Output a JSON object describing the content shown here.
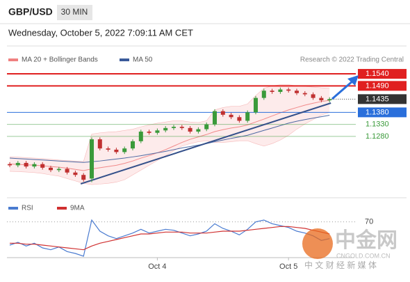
{
  "header": {
    "symbol": "GBP/USD",
    "interval": "30 MIN",
    "timestamp": "Wednesday, October 5, 2022 7:09:11 AM CET"
  },
  "watermark": {
    "brand": "中金网",
    "domain": "CNGOLD.COM.CN",
    "slogan": "中 文 财 经 新 媒 体"
  },
  "chart_data": [
    {
      "type": "candlestick",
      "credit": "Research © 2022 Trading Central",
      "legend": [
        {
          "name": "MA 20 + Bollinger Bands",
          "color": "#f08080"
        },
        {
          "name": "MA 50",
          "color": "#3a5a9a"
        }
      ],
      "categories": [
        null,
        null,
        null,
        null,
        null,
        null,
        null,
        null,
        null,
        null,
        null,
        null,
        null,
        null,
        null,
        null,
        null,
        null,
        "Oct 4",
        null,
        null,
        null,
        null,
        null,
        null,
        null,
        null,
        null,
        null,
        null,
        null,
        null,
        null,
        null,
        "Oct 5",
        null,
        null,
        null,
        null,
        null
      ],
      "open": [
        1.1165,
        1.116,
        1.117,
        1.1155,
        1.1165,
        1.115,
        1.114,
        1.1145,
        1.113,
        1.112,
        1.1105,
        1.1268,
        1.123,
        1.1225,
        1.1215,
        1.123,
        1.126,
        1.13,
        1.1295,
        1.1305,
        1.1315,
        1.132,
        1.1315,
        1.13,
        1.131,
        1.133,
        1.1385,
        1.137,
        1.136,
        1.1345,
        1.138,
        1.144,
        1.147,
        1.1465,
        1.1475,
        1.147,
        1.146,
        1.1455,
        1.144,
        1.143
      ],
      "high": [
        1.1173,
        1.1178,
        1.1178,
        1.1173,
        1.1173,
        1.1158,
        1.1153,
        1.1153,
        1.1138,
        1.1128,
        1.1276,
        1.1276,
        1.1238,
        1.1233,
        1.1238,
        1.1268,
        1.1308,
        1.1308,
        1.1313,
        1.1323,
        1.1328,
        1.1328,
        1.1323,
        1.1318,
        1.1338,
        1.1393,
        1.1393,
        1.1378,
        1.1368,
        1.1388,
        1.1448,
        1.1478,
        1.1478,
        1.1483,
        1.1483,
        1.1478,
        1.1468,
        1.1463,
        1.1448,
        1.1443
      ],
      "low": [
        1.1152,
        1.1152,
        1.1147,
        1.1147,
        1.1142,
        1.1132,
        1.1132,
        1.1122,
        1.1112,
        1.1092,
        1.109,
        1.1222,
        1.1217,
        1.1207,
        1.1207,
        1.1222,
        1.1252,
        1.1287,
        1.1287,
        1.1297,
        1.1307,
        1.1307,
        1.1292,
        1.1292,
        1.1302,
        1.1322,
        1.1362,
        1.1352,
        1.1337,
        1.1337,
        1.1372,
        1.1432,
        1.1457,
        1.1457,
        1.1462,
        1.1452,
        1.1447,
        1.1432,
        1.1422,
        1.1422
      ],
      "close": [
        1.116,
        1.117,
        1.1155,
        1.1165,
        1.115,
        1.114,
        1.1145,
        1.113,
        1.112,
        1.11,
        1.1268,
        1.123,
        1.1225,
        1.1215,
        1.123,
        1.126,
        1.13,
        1.1295,
        1.1305,
        1.1315,
        1.132,
        1.1315,
        1.13,
        1.131,
        1.133,
        1.1385,
        1.137,
        1.136,
        1.1345,
        1.138,
        1.144,
        1.147,
        1.1465,
        1.1475,
        1.147,
        1.146,
        1.1455,
        1.144,
        1.143,
        1.1435
      ],
      "ma20": [
        1.1165,
        1.1164,
        1.1162,
        1.1161,
        1.1158,
        1.1155,
        1.1152,
        1.1148,
        1.1143,
        1.1138,
        1.1145,
        1.115,
        1.1155,
        1.116,
        1.1168,
        1.1178,
        1.119,
        1.12,
        1.1212,
        1.1225,
        1.124,
        1.1255,
        1.1268,
        1.1278,
        1.1288,
        1.13,
        1.1308,
        1.1315,
        1.132,
        1.1328,
        1.134,
        1.1352,
        1.1365,
        1.1378,
        1.139,
        1.14,
        1.141,
        1.1418,
        1.1425,
        1.143
      ],
      "bb_upper": [
        1.1195,
        1.1194,
        1.1192,
        1.119,
        1.1188,
        1.1185,
        1.1182,
        1.118,
        1.1178,
        1.1176,
        1.129,
        1.1295,
        1.1298,
        1.13,
        1.1305,
        1.131,
        1.132,
        1.1328,
        1.1335,
        1.134,
        1.1345,
        1.1345,
        1.134,
        1.1338,
        1.1345,
        1.139,
        1.14,
        1.1405,
        1.1405,
        1.1415,
        1.145,
        1.148,
        1.149,
        1.1495,
        1.1495,
        1.149,
        1.1488,
        1.1485,
        1.1482,
        1.148
      ],
      "bb_lower": [
        1.1135,
        1.1134,
        1.1132,
        1.113,
        1.1126,
        1.112,
        1.1115,
        1.1105,
        1.1095,
        1.1085,
        1.108,
        1.1082,
        1.1085,
        1.109,
        1.11,
        1.112,
        1.114,
        1.116,
        1.118,
        1.12,
        1.122,
        1.124,
        1.125,
        1.1258,
        1.1262,
        1.1255,
        1.1255,
        1.1258,
        1.1262,
        1.1262,
        1.125,
        1.124,
        1.125,
        1.1265,
        1.1285,
        1.131,
        1.1332,
        1.135,
        1.1368,
        1.138
      ],
      "ma50": [
        1.119,
        1.1188,
        1.1186,
        1.1184,
        1.1182,
        1.118,
        1.1178,
        1.1176,
        1.1174,
        1.1172,
        1.1175,
        1.1178,
        1.1182,
        1.1186,
        1.119,
        1.1195,
        1.12,
        1.1206,
        1.1212,
        1.1218,
        1.1225,
        1.1232,
        1.1238,
        1.1244,
        1.125,
        1.1258,
        1.1265,
        1.1272,
        1.1278,
        1.1285,
        1.1295,
        1.1305,
        1.1315,
        1.1325,
        1.1335,
        1.1343,
        1.135,
        1.1356,
        1.1362,
        1.1368
      ],
      "ylim": [
        1.1031,
        1.1572
      ],
      "levels": [
        {
          "value": 1.154,
          "label": "1.1540",
          "color": "#e02020",
          "style": "box"
        },
        {
          "value": 1.149,
          "label": "1.1490",
          "color": "#e02020",
          "style": "box"
        },
        {
          "value": 1.1435,
          "label": "1.1435",
          "color": "#333333",
          "style": "current"
        },
        {
          "value": 1.138,
          "label": "1.1380",
          "color": "#2a6fdb",
          "style": "box"
        },
        {
          "value": 1.133,
          "label": "1.1330",
          "color": "#3a9a3a",
          "style": "text"
        },
        {
          "value": 1.128,
          "label": "1.1280",
          "color": "#3a9a3a",
          "style": "text"
        }
      ]
    },
    {
      "type": "line",
      "legend": [
        {
          "name": "RSI",
          "color": "#4a7bd0"
        },
        {
          "name": "9MA",
          "color": "#d03030"
        }
      ],
      "series": [
        {
          "name": "RSI",
          "color": "#4a7bd0",
          "values": [
            45,
            48,
            44,
            47,
            42,
            40,
            43,
            38,
            36,
            33,
            72,
            60,
            55,
            52,
            55,
            58,
            62,
            58,
            60,
            62,
            61,
            58,
            55,
            57,
            60,
            68,
            63,
            60,
            56,
            62,
            70,
            72,
            68,
            66,
            64,
            60,
            58,
            55,
            50,
            52
          ]
        },
        {
          "name": "9MA",
          "color": "#d03030",
          "values": [
            47,
            47,
            46,
            46,
            45,
            44,
            43,
            42,
            41,
            40,
            44,
            47,
            49,
            51,
            53,
            55,
            57,
            57,
            58,
            59,
            59,
            59,
            58,
            58,
            58,
            59,
            60,
            60,
            60,
            61,
            62,
            63,
            64,
            65,
            65,
            64,
            63,
            61,
            59,
            57
          ]
        }
      ],
      "ylim": [
        30,
        75
      ],
      "yticks": [
        70
      ]
    }
  ]
}
